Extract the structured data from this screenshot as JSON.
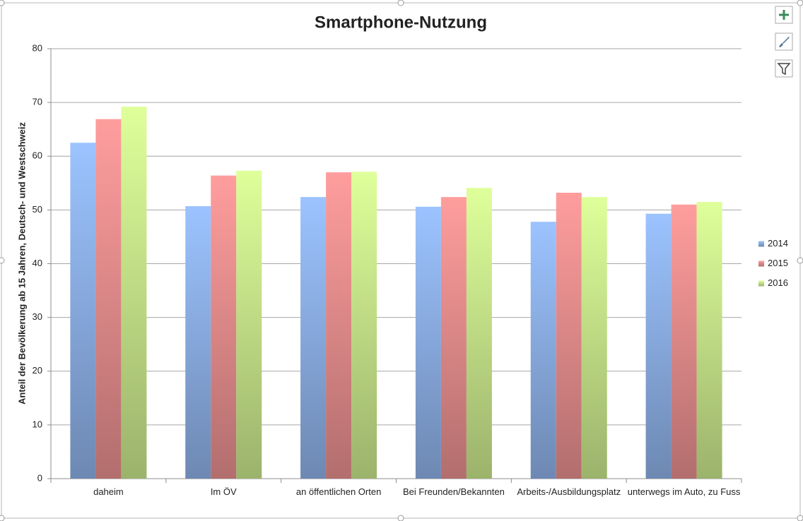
{
  "chart_data": {
    "type": "bar",
    "title": "Smartphone-Nutzung",
    "y_label": "Anteil der Bevölkerung ab 15 Jahren, Deutsch- und Westschweiz",
    "categories": [
      "daheim",
      "Im ÖV",
      "an öffentlichen Orten",
      "Bei Freunden/Bekannten",
      "Arbeits-/Ausbildungsplatz",
      "unterwegs im Auto, zu Fuss"
    ],
    "series": [
      {
        "name": "2014",
        "color": "#9cc3ff",
        "values": [
          62.5,
          50.7,
          52.4,
          50.6,
          47.8,
          49.3
        ]
      },
      {
        "name": "2015",
        "color": "#ff9d9d",
        "values": [
          66.9,
          56.4,
          57.0,
          52.4,
          53.2,
          51.0
        ]
      },
      {
        "name": "2016",
        "color": "#deff9a",
        "values": [
          69.2,
          57.3,
          57.1,
          54.1,
          52.4,
          51.5
        ]
      }
    ],
    "ylim": [
      0,
      80
    ],
    "yticks": [
      0,
      10,
      20,
      30,
      40,
      50,
      60,
      70,
      80
    ],
    "grid": true,
    "legend": "right"
  }
}
